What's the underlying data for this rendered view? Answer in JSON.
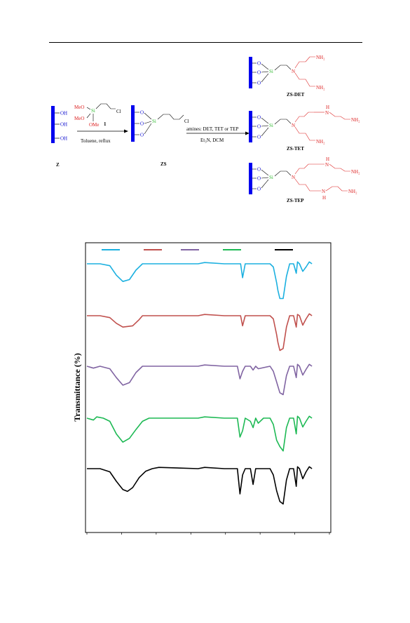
{
  "scheme": {
    "reagent_label": "1",
    "methoxy_top": "MeO",
    "methoxy_mid": "MeO",
    "methoxy_low": "OMe",
    "chloro": "Cl",
    "silicon": "Si",
    "oxygen": "O",
    "hydroxyl": "OH",
    "step1_conditions": "Toluene, reflux",
    "step2_conditions_line1": "amines: DET,  TET or TEP",
    "step2_conditions_line2": "Et₃N, DCM",
    "amine_primary": "NH₂",
    "amine_secondary": "H",
    "amine_N": "N",
    "label_Z": "Z",
    "label_ZS": "ZS",
    "label_DET": "ZS-DET",
    "label_TET": "ZS-TET",
    "label_TEP": "ZS-TEP",
    "colors": {
      "support": "#0000ee",
      "silicon": "#33bb33",
      "amine": "#dd2222",
      "oxygen": "#0000cc"
    }
  },
  "chart_data": {
    "type": "line",
    "ylabel": "Transmittance (%)",
    "xlabel": "",
    "x_range": [
      4000,
      400
    ],
    "x_ticks_count": 8,
    "grid": false,
    "series": [
      {
        "color": "#1bb0e0",
        "offset": 0,
        "points": [
          [
            4000,
            0
          ],
          [
            3800,
            0
          ],
          [
            3650,
            3
          ],
          [
            3550,
            18
          ],
          [
            3450,
            28
          ],
          [
            3350,
            25
          ],
          [
            3250,
            10
          ],
          [
            3150,
            0
          ],
          [
            2950,
            0
          ],
          [
            2300,
            0
          ],
          [
            2200,
            -2
          ],
          [
            1900,
            0
          ],
          [
            1650,
            0
          ],
          [
            1620,
            22
          ],
          [
            1580,
            0
          ],
          [
            1200,
            0
          ],
          [
            1150,
            5
          ],
          [
            1100,
            30
          ],
          [
            1080,
            42
          ],
          [
            1050,
            55
          ],
          [
            1000,
            55
          ],
          [
            950,
            20
          ],
          [
            900,
            0
          ],
          [
            840,
            0
          ],
          [
            800,
            15
          ],
          [
            780,
            -3
          ],
          [
            750,
            0
          ],
          [
            700,
            12
          ],
          [
            650,
            5
          ],
          [
            600,
            -3
          ],
          [
            560,
            0
          ]
        ]
      },
      {
        "color": "#c0504d",
        "offset": 0,
        "points": [
          [
            4000,
            0
          ],
          [
            3800,
            0
          ],
          [
            3650,
            3
          ],
          [
            3550,
            12
          ],
          [
            3450,
            18
          ],
          [
            3300,
            16
          ],
          [
            3200,
            6
          ],
          [
            3150,
            0
          ],
          [
            2300,
            0
          ],
          [
            2200,
            -2
          ],
          [
            1900,
            0
          ],
          [
            1650,
            0
          ],
          [
            1620,
            16
          ],
          [
            1580,
            0
          ],
          [
            1200,
            0
          ],
          [
            1150,
            5
          ],
          [
            1100,
            30
          ],
          [
            1080,
            42
          ],
          [
            1050,
            55
          ],
          [
            1000,
            52
          ],
          [
            950,
            18
          ],
          [
            900,
            0
          ],
          [
            840,
            0
          ],
          [
            800,
            18
          ],
          [
            780,
            -2
          ],
          [
            750,
            0
          ],
          [
            700,
            15
          ],
          [
            650,
            5
          ],
          [
            600,
            -3
          ],
          [
            560,
            0
          ]
        ]
      },
      {
        "color": "#8064a2",
        "offset": 0,
        "points": [
          [
            4000,
            0
          ],
          [
            3900,
            3
          ],
          [
            3800,
            0
          ],
          [
            3650,
            4
          ],
          [
            3550,
            18
          ],
          [
            3450,
            30
          ],
          [
            3350,
            26
          ],
          [
            3250,
            10
          ],
          [
            3150,
            0
          ],
          [
            2300,
            0
          ],
          [
            2200,
            -2
          ],
          [
            1900,
            0
          ],
          [
            1700,
            0
          ],
          [
            1660,
            20
          ],
          [
            1620,
            8
          ],
          [
            1580,
            0
          ],
          [
            1500,
            0
          ],
          [
            1460,
            6
          ],
          [
            1420,
            0
          ],
          [
            1380,
            4
          ],
          [
            1200,
            0
          ],
          [
            1150,
            8
          ],
          [
            1100,
            25
          ],
          [
            1050,
            42
          ],
          [
            1000,
            45
          ],
          [
            950,
            15
          ],
          [
            900,
            0
          ],
          [
            840,
            0
          ],
          [
            800,
            18
          ],
          [
            780,
            -3
          ],
          [
            750,
            0
          ],
          [
            700,
            14
          ],
          [
            650,
            5
          ],
          [
            600,
            -3
          ],
          [
            560,
            0
          ]
        ]
      },
      {
        "color": "#1db954",
        "offset": 0,
        "points": [
          [
            4000,
            0
          ],
          [
            3900,
            3
          ],
          [
            3850,
            -2
          ],
          [
            3750,
            0
          ],
          [
            3650,
            5
          ],
          [
            3550,
            25
          ],
          [
            3450,
            38
          ],
          [
            3350,
            32
          ],
          [
            3250,
            18
          ],
          [
            3150,
            5
          ],
          [
            3050,
            0
          ],
          [
            2300,
            0
          ],
          [
            2200,
            -2
          ],
          [
            1900,
            0
          ],
          [
            1700,
            0
          ],
          [
            1660,
            30
          ],
          [
            1620,
            20
          ],
          [
            1580,
            0
          ],
          [
            1500,
            5
          ],
          [
            1460,
            15
          ],
          [
            1420,
            0
          ],
          [
            1380,
            8
          ],
          [
            1300,
            0
          ],
          [
            1200,
            0
          ],
          [
            1150,
            10
          ],
          [
            1100,
            35
          ],
          [
            1050,
            45
          ],
          [
            1000,
            52
          ],
          [
            950,
            15
          ],
          [
            900,
            0
          ],
          [
            840,
            0
          ],
          [
            800,
            25
          ],
          [
            780,
            -3
          ],
          [
            750,
            0
          ],
          [
            700,
            14
          ],
          [
            650,
            5
          ],
          [
            600,
            -3
          ],
          [
            560,
            0
          ]
        ]
      },
      {
        "color": "#000000",
        "offset": 0,
        "points": [
          [
            4000,
            0
          ],
          [
            3800,
            0
          ],
          [
            3650,
            5
          ],
          [
            3550,
            20
          ],
          [
            3450,
            33
          ],
          [
            3380,
            36
          ],
          [
            3300,
            30
          ],
          [
            3200,
            14
          ],
          [
            3100,
            4
          ],
          [
            3000,
            0
          ],
          [
            2900,
            -2
          ],
          [
            2300,
            0
          ],
          [
            2200,
            -2
          ],
          [
            1900,
            0
          ],
          [
            1700,
            0
          ],
          [
            1660,
            40
          ],
          [
            1620,
            10
          ],
          [
            1580,
            0
          ],
          [
            1500,
            0
          ],
          [
            1460,
            25
          ],
          [
            1420,
            0
          ],
          [
            1300,
            0
          ],
          [
            1200,
            0
          ],
          [
            1150,
            10
          ],
          [
            1100,
            35
          ],
          [
            1050,
            52
          ],
          [
            1000,
            56
          ],
          [
            950,
            18
          ],
          [
            900,
            0
          ],
          [
            840,
            0
          ],
          [
            800,
            28
          ],
          [
            780,
            -3
          ],
          [
            750,
            0
          ],
          [
            700,
            16
          ],
          [
            650,
            5
          ],
          [
            600,
            -3
          ],
          [
            560,
            0
          ]
        ]
      }
    ]
  }
}
